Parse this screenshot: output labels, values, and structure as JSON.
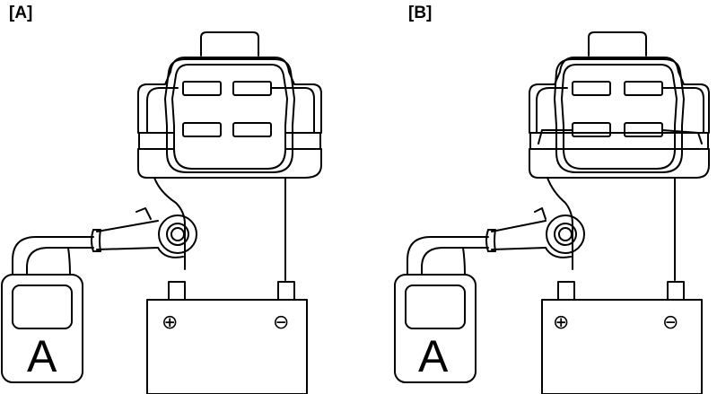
{
  "panels": [
    {
      "label": "[A]",
      "meter_letter": "A",
      "plus_symbol": "⊕",
      "minus_symbol": "⊖"
    },
    {
      "label": "[B]",
      "meter_letter": "A",
      "plus_symbol": "⊕",
      "minus_symbol": "⊖"
    }
  ],
  "line_color": "#000000",
  "fill_color": "#ffffff"
}
